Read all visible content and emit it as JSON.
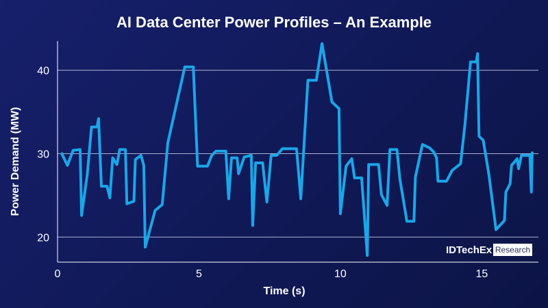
{
  "chart_data": {
    "type": "line",
    "title": "AI Data Center Power Profiles – An Example",
    "xlabel": "Time (s)",
    "ylabel": "Power Demand (MW)",
    "xlim": [
      0,
      17
    ],
    "ylim": [
      17,
      43.5
    ],
    "xticks": [
      0,
      5,
      10,
      15
    ],
    "yticks": [
      20,
      30,
      40
    ],
    "grid": "horizontal",
    "series": [
      {
        "color": "#1aa6e8",
        "points": [
          [
            0.15,
            30.0
          ],
          [
            0.35,
            28.6
          ],
          [
            0.55,
            30.4
          ],
          [
            0.8,
            30.5
          ],
          [
            0.85,
            22.6
          ],
          [
            1.05,
            27.5
          ],
          [
            1.2,
            33.2
          ],
          [
            1.4,
            33.2
          ],
          [
            1.45,
            34.2
          ],
          [
            1.55,
            26.1
          ],
          [
            1.75,
            26.1
          ],
          [
            1.85,
            24.7
          ],
          [
            1.95,
            29.5
          ],
          [
            2.1,
            28.7
          ],
          [
            2.2,
            30.5
          ],
          [
            2.4,
            30.5
          ],
          [
            2.45,
            24.0
          ],
          [
            2.7,
            24.3
          ],
          [
            2.75,
            29.3
          ],
          [
            2.95,
            29.8
          ],
          [
            3.05,
            28.6
          ],
          [
            3.1,
            18.8
          ],
          [
            3.45,
            23.2
          ],
          [
            3.7,
            23.9
          ],
          [
            3.9,
            31.3
          ],
          [
            4.5,
            40.4
          ],
          [
            4.8,
            40.4
          ],
          [
            4.95,
            28.5
          ],
          [
            5.3,
            28.5
          ],
          [
            5.45,
            29.8
          ],
          [
            5.6,
            30.3
          ],
          [
            5.95,
            30.3
          ],
          [
            6.05,
            24.6
          ],
          [
            6.15,
            29.5
          ],
          [
            6.35,
            29.5
          ],
          [
            6.4,
            27.6
          ],
          [
            6.6,
            29.6
          ],
          [
            6.85,
            29.8
          ],
          [
            6.9,
            21.4
          ],
          [
            7.0,
            28.9
          ],
          [
            7.25,
            28.9
          ],
          [
            7.4,
            24.2
          ],
          [
            7.55,
            29.8
          ],
          [
            7.75,
            29.8
          ],
          [
            7.95,
            30.6
          ],
          [
            8.45,
            30.6
          ],
          [
            8.6,
            24.6
          ],
          [
            8.85,
            38.8
          ],
          [
            9.15,
            38.8
          ],
          [
            9.35,
            43.2
          ],
          [
            9.7,
            36.2
          ],
          [
            9.95,
            35.4
          ],
          [
            10.0,
            22.8
          ],
          [
            10.2,
            28.5
          ],
          [
            10.4,
            29.4
          ],
          [
            10.5,
            27.1
          ],
          [
            10.75,
            27.1
          ],
          [
            10.95,
            17.8
          ],
          [
            11.0,
            28.7
          ],
          [
            11.35,
            28.7
          ],
          [
            11.45,
            25.1
          ],
          [
            11.65,
            23.8
          ],
          [
            11.75,
            30.5
          ],
          [
            12.0,
            30.5
          ],
          [
            12.1,
            27.0
          ],
          [
            12.35,
            21.9
          ],
          [
            12.6,
            21.9
          ],
          [
            12.65,
            27.2
          ],
          [
            12.9,
            31.1
          ],
          [
            13.15,
            30.7
          ],
          [
            13.3,
            30.2
          ],
          [
            13.4,
            29.5
          ],
          [
            13.45,
            26.7
          ],
          [
            13.75,
            26.7
          ],
          [
            13.95,
            28.0
          ],
          [
            14.25,
            28.8
          ],
          [
            14.4,
            33.4
          ],
          [
            14.6,
            41.0
          ],
          [
            14.8,
            41.0
          ],
          [
            14.85,
            42.0
          ],
          [
            14.9,
            32.1
          ],
          [
            15.05,
            31.6
          ],
          [
            15.25,
            27.5
          ],
          [
            15.5,
            20.9
          ],
          [
            15.8,
            22.0
          ],
          [
            15.85,
            25.4
          ],
          [
            16.0,
            26.4
          ],
          [
            16.05,
            28.6
          ],
          [
            16.25,
            29.4
          ],
          [
            16.3,
            28.2
          ],
          [
            16.4,
            29.8
          ],
          [
            16.7,
            29.8
          ],
          [
            16.75,
            25.4
          ],
          [
            16.78,
            30.1
          ]
        ]
      }
    ]
  },
  "logo": {
    "brand": "IDTechEx",
    "tag": "Research"
  }
}
